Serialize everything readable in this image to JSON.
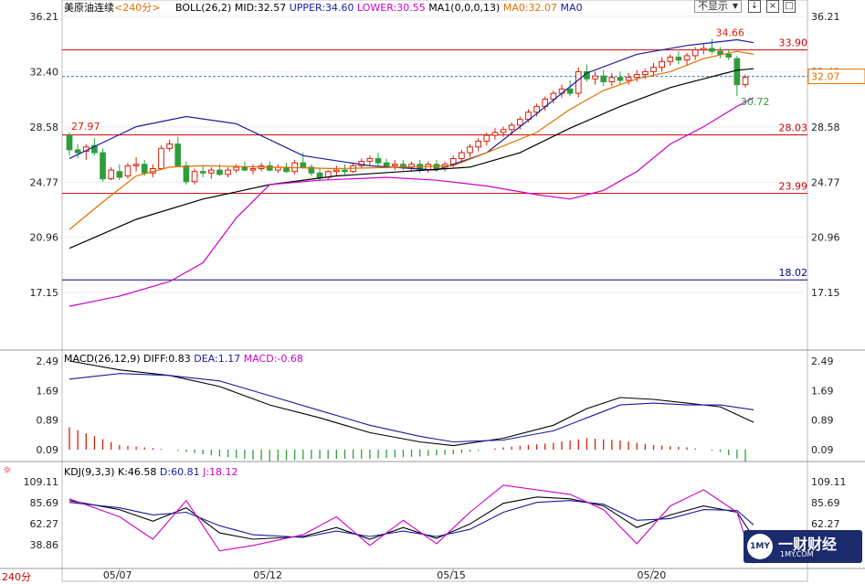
{
  "header": {
    "symbol": "美原油连续",
    "period": "<240分>",
    "indicators": [
      {
        "text": "BOLL(26,2)",
        "color": "#000000"
      },
      {
        "text": "MID:32.57",
        "color": "#000000"
      },
      {
        "text": "UPPER:34.60",
        "color": "#1a1aa0"
      },
      {
        "text": "LOWER:30.55",
        "color": "#cc00cc"
      },
      {
        "text": "MA1(0,0,0,13)",
        "color": "#000000"
      },
      {
        "text": "MA0:32.07",
        "color": "#e07000"
      },
      {
        "text": "MA0",
        "color": "#1a1aa0"
      }
    ],
    "dropdown_label": "不显示",
    "button_down": "↓",
    "button_close": "×",
    "button_box": "□"
  },
  "price_axis": {
    "ticks": [
      "36.21",
      "32.40",
      "28.58",
      "24.77",
      "20.96",
      "17.15"
    ],
    "current_price_tag": "32.07"
  },
  "macd_header": {
    "items": [
      {
        "text": "MACD(26,12,9)",
        "color": "#000000"
      },
      {
        "text": "DIFF:0.83",
        "color": "#000000"
      },
      {
        "text": "DEA:1.17",
        "color": "#1a1aa0"
      },
      {
        "text": "MACD:-0.68",
        "color": "#cc00cc"
      }
    ],
    "ticks": [
      "2.49",
      "1.69",
      "0.89",
      "0.09"
    ]
  },
  "kdj_header": {
    "items": [
      {
        "text": "KDJ(9,3,3)",
        "color": "#000000"
      },
      {
        "text": "K:46.58",
        "color": "#000000"
      },
      {
        "text": "D:60.81",
        "color": "#1a1aa0"
      },
      {
        "text": "J:18.12",
        "color": "#cc00cc"
      }
    ],
    "ticks": [
      "109.11",
      "85.69",
      "62.27",
      "38.86"
    ]
  },
  "x_axis": {
    "labels": [
      "05/07",
      "05/12",
      "05/15",
      "05/20"
    ],
    "timeframe": "240分"
  },
  "annotations": {
    "level_lines": [
      {
        "value": 33.9,
        "label": "33.90",
        "color": "#cc0000"
      },
      {
        "value": 28.03,
        "label": "28.03",
        "color": "#cc0000"
      },
      {
        "value": 23.99,
        "label": "23.99",
        "color": "#cc0000"
      },
      {
        "value": 18.02,
        "label": "18.02",
        "color": "#000080"
      }
    ],
    "high_label": "34.66",
    "low_label": "30.72",
    "first_high_label": "27.97"
  },
  "watermark": {
    "name": "一财财经",
    "url": "1MY.COM",
    "logo": "1MY"
  },
  "colors": {
    "up": "#d81e06",
    "down": "#2e9e3a",
    "mid": "#000000",
    "upper": "#1a1aa0",
    "lower": "#cc00cc",
    "ma": "#e07000"
  },
  "chart_data": {
    "type": "candlestick",
    "title": "美原油连续",
    "ylim": [
      15.5,
      37.0
    ],
    "ohlc": [
      [
        28.0,
        28.2,
        26.6,
        27.0
      ],
      [
        27.0,
        27.4,
        26.4,
        26.8
      ],
      [
        26.9,
        27.4,
        26.3,
        27.2
      ],
      [
        27.3,
        27.8,
        26.6,
        26.8
      ],
      [
        26.8,
        27.1,
        24.8,
        25.0
      ],
      [
        25.0,
        25.8,
        24.9,
        25.6
      ],
      [
        25.5,
        26.0,
        24.9,
        25.1
      ],
      [
        25.2,
        26.1,
        25.0,
        25.9
      ],
      [
        25.9,
        26.5,
        25.5,
        26.0
      ],
      [
        26.0,
        26.3,
        25.2,
        25.4
      ],
      [
        25.4,
        26.0,
        25.1,
        25.7
      ],
      [
        25.7,
        27.3,
        25.6,
        27.1
      ],
      [
        27.1,
        27.7,
        26.9,
        27.4
      ],
      [
        27.4,
        27.9,
        25.8,
        25.9
      ],
      [
        25.9,
        26.2,
        24.6,
        24.8
      ],
      [
        24.8,
        25.7,
        24.6,
        25.5
      ],
      [
        25.5,
        25.9,
        25.1,
        25.4
      ],
      [
        25.4,
        25.8,
        25.0,
        25.6
      ],
      [
        25.6,
        26.0,
        25.2,
        25.3
      ],
      [
        25.3,
        25.8,
        25.1,
        25.6
      ],
      [
        25.6,
        26.0,
        25.4,
        25.8
      ],
      [
        25.8,
        26.2,
        25.5,
        25.6
      ],
      [
        25.6,
        26.0,
        25.3,
        25.7
      ],
      [
        25.7,
        26.1,
        25.5,
        25.9
      ],
      [
        25.9,
        26.2,
        25.5,
        25.6
      ],
      [
        25.6,
        26.0,
        25.4,
        25.8
      ],
      [
        25.8,
        26.1,
        25.4,
        25.5
      ],
      [
        25.5,
        26.3,
        25.3,
        26.1
      ],
      [
        26.1,
        26.8,
        25.7,
        25.8
      ],
      [
        25.8,
        26.0,
        25.2,
        25.4
      ],
      [
        25.4,
        25.7,
        24.9,
        25.1
      ],
      [
        25.1,
        25.6,
        24.9,
        25.5
      ],
      [
        25.5,
        25.9,
        25.2,
        25.6
      ],
      [
        25.6,
        26.0,
        25.3,
        25.5
      ],
      [
        25.5,
        26.1,
        25.4,
        25.9
      ],
      [
        25.9,
        26.4,
        25.7,
        26.2
      ],
      [
        26.2,
        26.6,
        25.9,
        26.4
      ],
      [
        26.4,
        26.8,
        25.9,
        26.1
      ],
      [
        26.1,
        26.4,
        25.7,
        25.9
      ],
      [
        25.9,
        26.3,
        25.6,
        26.0
      ],
      [
        26.0,
        26.3,
        25.6,
        25.8
      ],
      [
        25.8,
        26.2,
        25.5,
        26.0
      ],
      [
        26.0,
        26.3,
        25.4,
        25.6
      ],
      [
        25.6,
        26.2,
        25.4,
        26.0
      ],
      [
        26.0,
        26.3,
        25.5,
        25.7
      ],
      [
        25.7,
        26.2,
        25.5,
        26.0
      ],
      [
        26.0,
        26.6,
        25.8,
        26.4
      ],
      [
        26.4,
        27.0,
        26.1,
        26.8
      ],
      [
        26.8,
        27.4,
        26.5,
        27.2
      ],
      [
        27.2,
        27.8,
        26.9,
        27.6
      ],
      [
        27.6,
        28.2,
        27.3,
        28.0
      ],
      [
        28.0,
        28.5,
        27.7,
        28.2
      ],
      [
        28.2,
        28.6,
        27.9,
        28.4
      ],
      [
        28.4,
        28.9,
        28.0,
        28.7
      ],
      [
        28.7,
        29.3,
        28.4,
        29.1
      ],
      [
        29.1,
        29.8,
        28.9,
        29.6
      ],
      [
        29.6,
        30.2,
        29.3,
        30.0
      ],
      [
        30.0,
        30.7,
        29.7,
        30.5
      ],
      [
        30.5,
        31.1,
        30.2,
        30.9
      ],
      [
        30.9,
        31.5,
        30.6,
        31.2
      ],
      [
        31.2,
        31.8,
        30.7,
        30.9
      ],
      [
        30.9,
        32.7,
        30.6,
        32.4
      ],
      [
        32.4,
        32.9,
        31.7,
        31.9
      ],
      [
        31.9,
        32.4,
        31.5,
        32.1
      ],
      [
        32.1,
        32.5,
        31.4,
        31.7
      ],
      [
        31.7,
        32.3,
        31.4,
        32.0
      ],
      [
        32.0,
        32.4,
        31.5,
        31.8
      ],
      [
        31.8,
        32.3,
        31.5,
        32.0
      ],
      [
        32.0,
        32.5,
        31.7,
        32.2
      ],
      [
        32.2,
        32.6,
        31.9,
        32.4
      ],
      [
        32.4,
        33.0,
        32.1,
        32.7
      ],
      [
        32.7,
        33.4,
        32.4,
        33.1
      ],
      [
        33.1,
        33.6,
        32.8,
        33.4
      ],
      [
        33.4,
        33.8,
        32.9,
        33.2
      ],
      [
        33.2,
        33.7,
        32.8,
        33.5
      ],
      [
        33.5,
        34.1,
        33.2,
        33.9
      ],
      [
        33.9,
        34.3,
        33.6,
        34.0
      ],
      [
        34.0,
        34.66,
        33.6,
        33.8
      ],
      [
        33.8,
        34.1,
        33.3,
        33.6
      ],
      [
        33.6,
        33.9,
        33.2,
        33.4
      ],
      [
        33.3,
        33.5,
        30.72,
        31.5
      ],
      [
        31.5,
        32.2,
        31.3,
        32.0
      ]
    ],
    "macd": {
      "diff": 0.83,
      "dea": 1.17,
      "macd": -0.68
    },
    "kdj": {
      "k": 46.58,
      "d": 60.81,
      "j": 18.12
    },
    "x_labels": [
      "05/07",
      "05/12",
      "05/15",
      "05/20"
    ]
  }
}
